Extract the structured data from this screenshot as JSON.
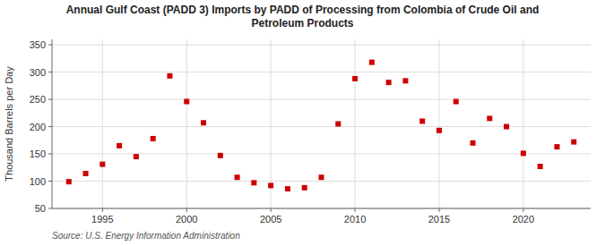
{
  "chart_data": {
    "type": "scatter",
    "title": "Annual Gulf Coast (PADD 3) Imports by PADD of Processing from Colombia of Crude Oil and\nPetroleum Products",
    "y_label": "Thousand Barrels per Day",
    "annotations": [
      "Source: U.S. Energy Information Administration"
    ],
    "x": [
      1993,
      1994,
      1995,
      1996,
      1997,
      1998,
      1999,
      2000,
      2001,
      2002,
      2003,
      2004,
      2005,
      2006,
      2007,
      2008,
      2009,
      2010,
      2011,
      2012,
      2013,
      2014,
      2015,
      2016,
      2017,
      2018,
      2019,
      2020,
      2021,
      2022,
      2023
    ],
    "values": [
      99,
      114,
      131,
      165,
      145,
      178,
      293,
      246,
      207,
      147,
      107,
      97,
      92,
      86,
      88,
      107,
      205,
      288,
      318,
      281,
      284,
      210,
      193,
      246,
      170,
      215,
      200,
      151,
      127,
      163,
      172
    ],
    "color": "#cc0000",
    "marker": "square",
    "xlim": [
      1992,
      2024
    ],
    "xticks": [
      1995,
      2000,
      2005,
      2010,
      2015,
      2020
    ],
    "ylim": [
      50,
      360
    ],
    "yticks": [
      50,
      100,
      150,
      200,
      250,
      300,
      350
    ],
    "grid": true
  }
}
